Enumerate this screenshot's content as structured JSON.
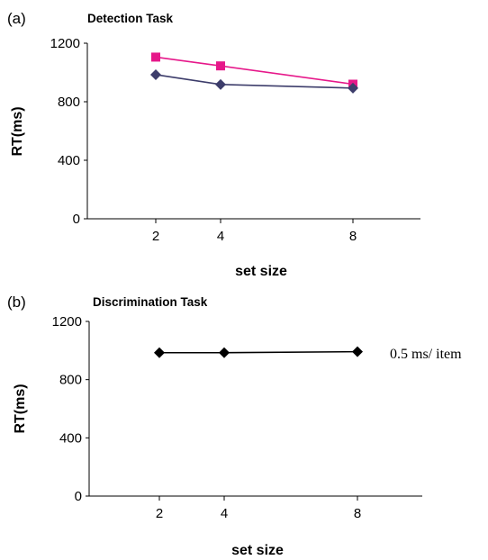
{
  "chart_data": [
    {
      "type": "line",
      "panel_label": "(a)",
      "title": "Detection Task",
      "xlabel": "set size",
      "ylabel": "RT(ms)",
      "x": [
        2,
        4,
        8
      ],
      "x_ticks": [
        "2",
        "4",
        "8"
      ],
      "ylim": [
        0,
        1200
      ],
      "y_ticks": [
        "0",
        "400",
        "800",
        "1200"
      ],
      "grid": false,
      "series": [
        {
          "color": "#e6188a",
          "marker": "square",
          "values": [
            1105,
            1045,
            920
          ]
        },
        {
          "color": "#3d3d6b",
          "marker": "diamond",
          "values": [
            985,
            918,
            893
          ]
        }
      ]
    },
    {
      "type": "line",
      "panel_label": "(b)",
      "title": "Discrimination Task",
      "xlabel": "set size",
      "ylabel": "RT(ms)",
      "x": [
        2,
        4,
        8
      ],
      "x_ticks": [
        "2",
        "4",
        "8"
      ],
      "ylim": [
        0,
        1200
      ],
      "y_ticks": [
        "0",
        "400",
        "800",
        "1200"
      ],
      "grid": false,
      "annotation": "0.5 ms/ item",
      "series": [
        {
          "color": "#000000",
          "marker": "diamond",
          "values": [
            985,
            985,
            992
          ]
        }
      ]
    }
  ]
}
